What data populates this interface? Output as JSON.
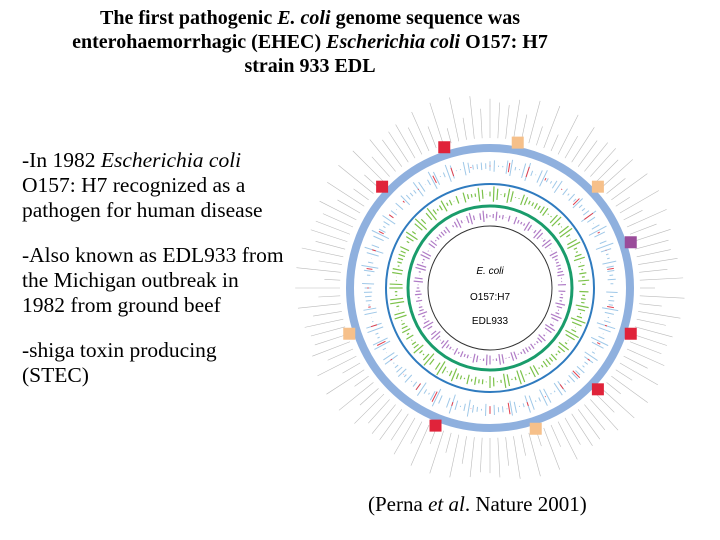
{
  "title": {
    "runs": [
      "The first pathogenic ",
      "E. coli",
      " genome sequence was",
      "enterohaemorrhagic (EHEC) ",
      "Escherichia coli",
      " O157: H7",
      "strain 933 EDL"
    ]
  },
  "bullets": [
    {
      "runs": [
        "-In 1982 ",
        "Escherichia coli",
        " O157: H7 recognized as a pathogen for human disease"
      ]
    },
    {
      "runs": [
        "-Also known as EDL933 from the Michigan outbreak in 1982 from ground beef"
      ]
    },
    {
      "runs": [
        "-shiga toxin producing (STEC)"
      ]
    }
  ],
  "figure": {
    "center_labels": [
      "E. coli",
      "O157:H7",
      "EDL933"
    ]
  },
  "citation": {
    "runs": [
      "(Perna ",
      "et al",
      ". Nature 2001)"
    ]
  }
}
